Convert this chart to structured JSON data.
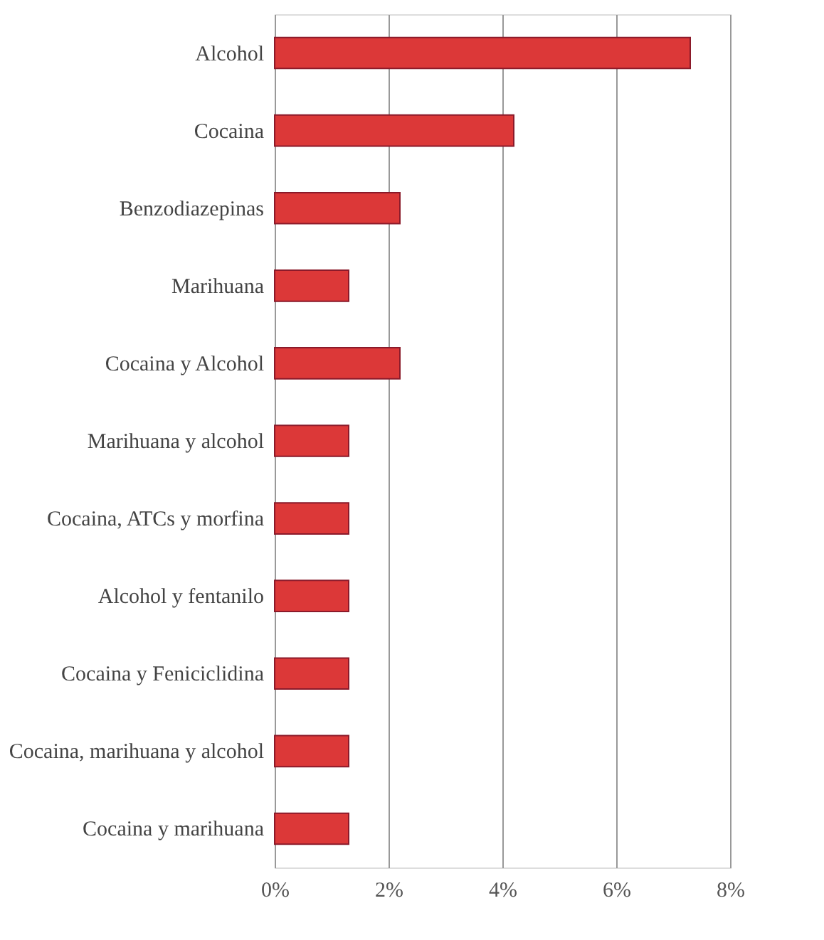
{
  "chart_data": {
    "type": "bar",
    "orientation": "horizontal",
    "categories": [
      "Alcohol",
      "Cocaina",
      "Benzodiazepinas",
      "Marihuana",
      "Cocaina y Alcohol",
      "Marihuana y alcohol",
      "Cocaina, ATCs y morfina",
      "Alcohol y fentanilo",
      "Cocaina y Feniciclidina",
      "Cocaina, marihuana y alcohol",
      "Cocaina y marihuana"
    ],
    "values": [
      7.3,
      4.2,
      2.2,
      1.3,
      2.2,
      1.3,
      1.3,
      1.3,
      1.3,
      1.3,
      1.3
    ],
    "color": "#dc3838",
    "xlim": [
      0,
      8
    ],
    "xticks": [
      {
        "value": 0,
        "label": "0%"
      },
      {
        "value": 2,
        "label": "2%"
      },
      {
        "value": 4,
        "label": "4%"
      },
      {
        "value": 6,
        "label": "6%"
      },
      {
        "value": 8,
        "label": "8%"
      }
    ],
    "grid": "x"
  }
}
